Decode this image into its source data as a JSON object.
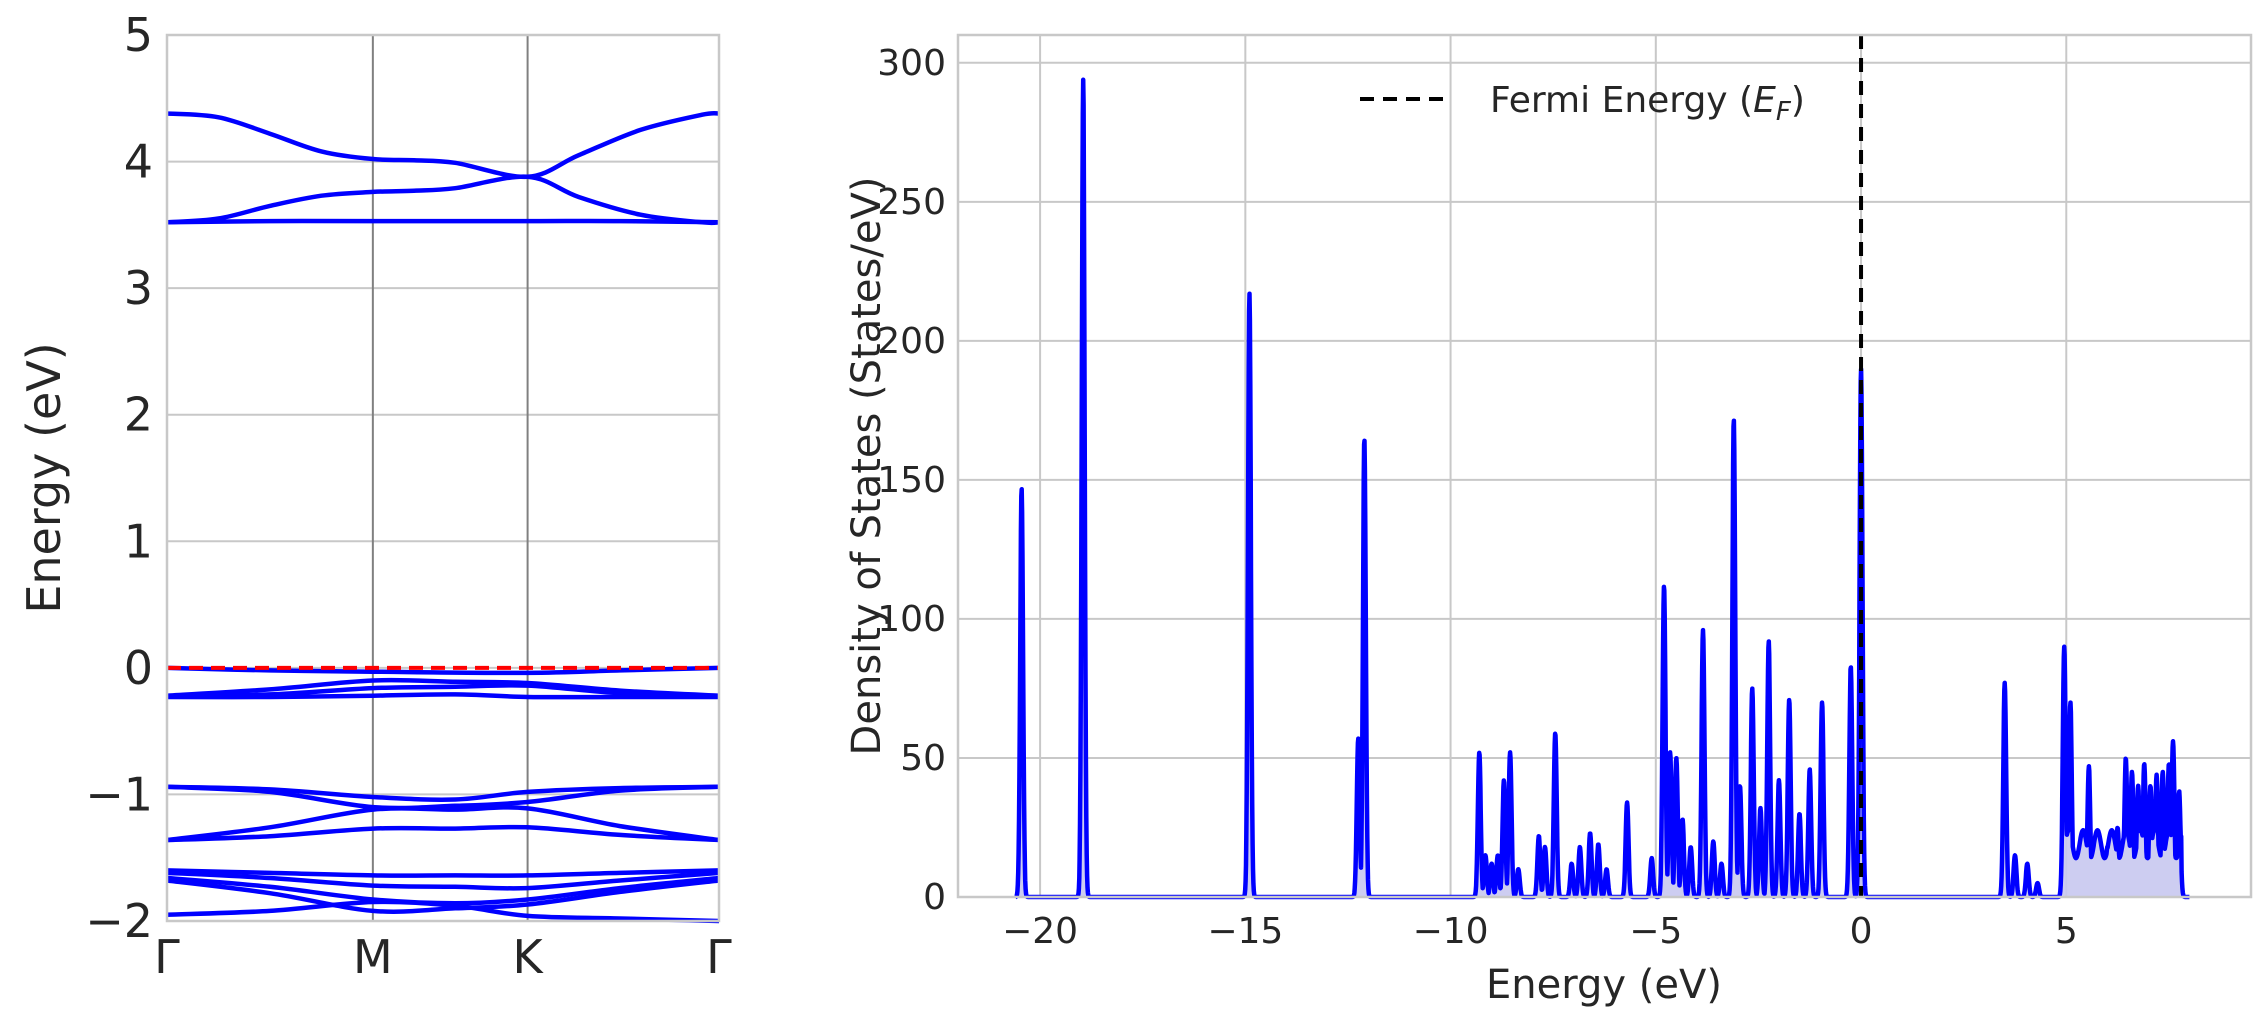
{
  "chart_data": [
    {
      "type": "line",
      "ylabel": "Energy (eV)",
      "xlabel": "",
      "ylim": [
        -2,
        5
      ],
      "yticks": [
        {
          "v": 5,
          "label": "5"
        },
        {
          "v": 4,
          "label": "4"
        },
        {
          "v": 3,
          "label": "3"
        },
        {
          "v": 2,
          "label": "2"
        },
        {
          "v": 1,
          "label": "1"
        },
        {
          "v": 0,
          "label": "0"
        },
        {
          "v": -1,
          "label": "−1"
        },
        {
          "v": -2,
          "label": "−2"
        }
      ],
      "kpoints": [
        {
          "label": "Γ",
          "x": 0
        },
        {
          "label": "M",
          "x": 1
        },
        {
          "label": "K",
          "x": 1.7517
        },
        {
          "label": "Γ",
          "x": 2.6815
        }
      ],
      "grid": true,
      "fermi_level": 0,
      "colors": {
        "bands": "#0000ff",
        "fermi": "#ff0000",
        "grid": "#c8c8c8",
        "kline": "#808080"
      },
      "series": [
        {
          "x": [
            0,
            0.25,
            0.5,
            0.75,
            1,
            1.2,
            1.4,
            1.7517,
            2.0,
            2.3,
            2.6,
            2.6815
          ],
          "values": [
            4.38,
            4.35,
            4.22,
            4.08,
            4.02,
            4.01,
            3.99,
            3.88,
            4.05,
            4.25,
            4.37,
            4.38
          ]
        },
        {
          "x": [
            0,
            0.25,
            0.5,
            0.75,
            1,
            1.2,
            1.4,
            1.7517,
            2.0,
            2.3,
            2.6,
            2.6815
          ],
          "values": [
            3.52,
            3.55,
            3.65,
            3.73,
            3.76,
            3.77,
            3.79,
            3.88,
            3.72,
            3.58,
            3.52,
            3.52
          ]
        },
        {
          "x": [
            0,
            0.5,
            1,
            1.7517,
            2.2,
            2.6815
          ],
          "values": [
            3.52,
            3.53,
            3.53,
            3.53,
            3.53,
            3.52
          ]
        },
        {
          "x": [
            0,
            0.5,
            1,
            1.7517,
            2.2,
            2.6815
          ],
          "values": [
            0.0,
            -0.02,
            -0.03,
            -0.04,
            -0.02,
            0.0
          ]
        },
        {
          "x": [
            0,
            0.5,
            1,
            1.4,
            1.7517,
            2.2,
            2.6815
          ],
          "values": [
            -0.22,
            -0.17,
            -0.1,
            -0.11,
            -0.12,
            -0.18,
            -0.22
          ]
        },
        {
          "x": [
            0,
            0.5,
            1,
            1.4,
            1.7517,
            2.2,
            2.6815
          ],
          "values": [
            -0.22,
            -0.21,
            -0.16,
            -0.15,
            -0.14,
            -0.2,
            -0.22
          ]
        },
        {
          "x": [
            0,
            0.5,
            1,
            1.4,
            1.7517,
            2.2,
            2.6815
          ],
          "values": [
            -0.23,
            -0.23,
            -0.22,
            -0.21,
            -0.23,
            -0.23,
            -0.23
          ]
        },
        {
          "x": [
            0,
            0.5,
            1,
            1.4,
            1.7517,
            2.2,
            2.6815
          ],
          "values": [
            -0.94,
            -0.96,
            -1.02,
            -1.04,
            -0.98,
            -0.95,
            -0.94
          ]
        },
        {
          "x": [
            0,
            0.5,
            1,
            1.4,
            1.7517,
            2.2,
            2.6815
          ],
          "values": [
            -0.94,
            -0.98,
            -1.1,
            -1.09,
            -1.06,
            -0.97,
            -0.94
          ]
        },
        {
          "x": [
            0,
            0.5,
            1,
            1.4,
            1.7517,
            2.2,
            2.6815
          ],
          "values": [
            -1.36,
            -1.26,
            -1.12,
            -1.12,
            -1.11,
            -1.25,
            -1.36
          ]
        },
        {
          "x": [
            0,
            0.5,
            1,
            1.4,
            1.7517,
            2.2,
            2.6815
          ],
          "values": [
            -1.36,
            -1.33,
            -1.27,
            -1.27,
            -1.26,
            -1.32,
            -1.36
          ]
        },
        {
          "x": [
            0,
            0.5,
            1,
            1.4,
            1.7517,
            2.2,
            2.6815
          ],
          "values": [
            -1.6,
            -1.62,
            -1.64,
            -1.64,
            -1.64,
            -1.62,
            -1.6
          ]
        },
        {
          "x": [
            0,
            0.5,
            1,
            1.4,
            1.7517,
            2.2,
            2.6815
          ],
          "values": [
            -1.62,
            -1.66,
            -1.72,
            -1.73,
            -1.74,
            -1.68,
            -1.62
          ]
        },
        {
          "x": [
            0,
            0.5,
            1,
            1.4,
            1.7517,
            2.2,
            2.6815
          ],
          "values": [
            -1.66,
            -1.73,
            -1.83,
            -1.86,
            -1.83,
            -1.74,
            -1.66
          ]
        },
        {
          "x": [
            0,
            0.5,
            1,
            1.4,
            1.7517,
            2.2,
            2.6815
          ],
          "values": [
            -1.68,
            -1.78,
            -1.92,
            -1.9,
            -1.87,
            -1.77,
            -1.68
          ]
        },
        {
          "x": [
            0,
            0.5,
            1,
            1.4,
            1.7517,
            2.2,
            2.6815
          ],
          "values": [
            -1.95,
            -1.92,
            -1.85,
            -1.88,
            -1.96,
            -1.98,
            -2.0
          ]
        }
      ]
    },
    {
      "type": "area",
      "xlabel": "Energy (eV)",
      "ylabel": "Density of States (States/eV)",
      "xlim": [
        -22,
        9.5
      ],
      "ylim": [
        0,
        310
      ],
      "xticks": [
        {
          "v": -20,
          "label": "−20"
        },
        {
          "v": -15,
          "label": "−15"
        },
        {
          "v": -10,
          "label": "−10"
        },
        {
          "v": -5,
          "label": "−5"
        },
        {
          "v": 0,
          "label": "0"
        },
        {
          "v": 5,
          "label": "5"
        }
      ],
      "yticks": [
        {
          "v": 0,
          "label": "0"
        },
        {
          "v": 50,
          "label": "50"
        },
        {
          "v": 100,
          "label": "100"
        },
        {
          "v": 150,
          "label": "150"
        },
        {
          "v": 200,
          "label": "200"
        },
        {
          "v": 250,
          "label": "250"
        },
        {
          "v": 300,
          "label": "300"
        }
      ],
      "grid": true,
      "legend": {
        "position": "top-center",
        "entries": [
          {
            "label_text": "Fermi Energy (",
            "label_math": "E",
            "label_sub": "F",
            "label_end": ")"
          }
        ]
      },
      "fermi_level": 0,
      "colors": {
        "line": "#0000ff",
        "fill": "#c8c8f0",
        "fermi": "#000000",
        "grid": "#c8c8c8"
      },
      "x_range": [
        -20.6,
        8.0
      ],
      "peaks": [
        {
          "x": -20.45,
          "y": 147
        },
        {
          "x": -18.95,
          "y": 294
        },
        {
          "x": -14.9,
          "y": 217
        },
        {
          "x": -12.25,
          "y": 57
        },
        {
          "x": -12.1,
          "y": 165
        },
        {
          "x": -9.3,
          "y": 52
        },
        {
          "x": -9.15,
          "y": 15
        },
        {
          "x": -9.0,
          "y": 12
        },
        {
          "x": -8.85,
          "y": 15
        },
        {
          "x": -8.7,
          "y": 42
        },
        {
          "x": -8.55,
          "y": 52
        },
        {
          "x": -8.35,
          "y": 10
        },
        {
          "x": -7.85,
          "y": 22
        },
        {
          "x": -7.7,
          "y": 18
        },
        {
          "x": -7.45,
          "y": 59
        },
        {
          "x": -7.05,
          "y": 12
        },
        {
          "x": -6.85,
          "y": 18
        },
        {
          "x": -6.6,
          "y": 23
        },
        {
          "x": -6.4,
          "y": 19
        },
        {
          "x": -6.2,
          "y": 10
        },
        {
          "x": -5.7,
          "y": 34
        },
        {
          "x": -5.1,
          "y": 14
        },
        {
          "x": -4.8,
          "y": 112
        },
        {
          "x": -4.65,
          "y": 52
        },
        {
          "x": -4.5,
          "y": 50
        },
        {
          "x": -4.35,
          "y": 28
        },
        {
          "x": -4.15,
          "y": 18
        },
        {
          "x": -3.85,
          "y": 96
        },
        {
          "x": -3.6,
          "y": 20
        },
        {
          "x": -3.4,
          "y": 12
        },
        {
          "x": -3.1,
          "y": 172
        },
        {
          "x": -2.95,
          "y": 40
        },
        {
          "x": -2.65,
          "y": 75
        },
        {
          "x": -2.45,
          "y": 32
        },
        {
          "x": -2.25,
          "y": 92
        },
        {
          "x": -2.0,
          "y": 42
        },
        {
          "x": -1.75,
          "y": 71
        },
        {
          "x": -1.5,
          "y": 30
        },
        {
          "x": -1.25,
          "y": 46
        },
        {
          "x": -0.95,
          "y": 70
        },
        {
          "x": -0.25,
          "y": 83
        },
        {
          "x": 0.0,
          "y": 190
        },
        {
          "x": 3.5,
          "y": 77
        },
        {
          "x": 3.75,
          "y": 15
        },
        {
          "x": 4.05,
          "y": 12
        },
        {
          "x": 4.3,
          "y": 5
        },
        {
          "x": 4.95,
          "y": 90
        },
        {
          "x": 5.1,
          "y": 70
        },
        {
          "x": 5.55,
          "y": 47
        },
        {
          "x": 5.8,
          "y": 20
        },
        {
          "x": 6.0,
          "y": 18
        },
        {
          "x": 6.25,
          "y": 25
        },
        {
          "x": 6.45,
          "y": 50
        },
        {
          "x": 6.6,
          "y": 45
        },
        {
          "x": 6.75,
          "y": 40
        },
        {
          "x": 6.9,
          "y": 48
        },
        {
          "x": 7.05,
          "y": 40
        },
        {
          "x": 7.2,
          "y": 44
        },
        {
          "x": 7.35,
          "y": 45
        },
        {
          "x": 7.5,
          "y": 48
        },
        {
          "x": 7.6,
          "y": 56
        },
        {
          "x": 7.75,
          "y": 38
        }
      ],
      "fill_region": [
        5.0,
        7.8
      ]
    }
  ]
}
